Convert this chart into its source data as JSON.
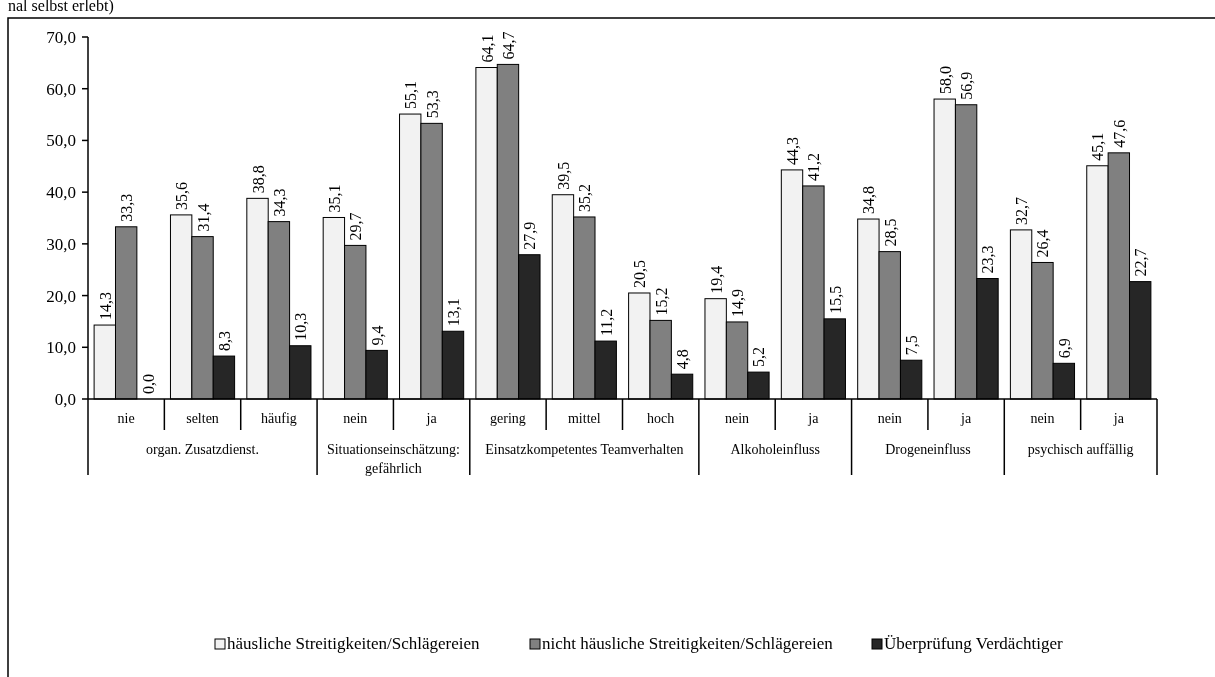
{
  "chart_data": {
    "type": "bar",
    "categories": [
      "nie",
      "selten",
      "häufig",
      "nein",
      "ja",
      "gering",
      "mittel",
      "hoch",
      "nein",
      "ja",
      "nein",
      "ja",
      "nein",
      "ja"
    ],
    "series": [
      {
        "name": "häusliche Streitigkeiten/Schlägereien",
        "color": "#f2f2f2",
        "values": [
          14.3,
          35.6,
          38.8,
          35.1,
          55.1,
          64.1,
          39.5,
          20.5,
          19.4,
          44.3,
          34.8,
          58.0,
          32.7,
          45.1
        ]
      },
      {
        "name": "nicht häusliche Streitigkeiten/Schlägereien",
        "color": "#808080",
        "values": [
          33.3,
          31.4,
          34.3,
          29.7,
          53.3,
          64.7,
          35.2,
          15.2,
          14.9,
          41.2,
          28.5,
          56.9,
          26.4,
          47.6
        ]
      },
      {
        "name": "Überprüfung Verdächtiger",
        "color": "#262626",
        "values": [
          0.0,
          8.3,
          10.3,
          9.4,
          13.1,
          27.9,
          11.2,
          4.8,
          5.2,
          15.5,
          7.5,
          23.3,
          6.9,
          22.7
        ]
      }
    ],
    "ylim": [
      0,
      70
    ],
    "yticks": [
      {
        "value": 0,
        "label": "0,0"
      },
      {
        "value": 10,
        "label": "10,0"
      },
      {
        "value": 20,
        "label": "20,0"
      },
      {
        "value": 30,
        "label": "30,0"
      },
      {
        "value": 40,
        "label": "40,0"
      },
      {
        "value": 50,
        "label": "50,0"
      },
      {
        "value": 60,
        "label": "60,0"
      },
      {
        "value": 70,
        "label": "70,0"
      }
    ],
    "value_labels": [
      [
        "14,3",
        "35,6",
        "38,8",
        "35,1",
        "55,1",
        "64,1",
        "39,5",
        "20,5",
        "19,4",
        "44,3",
        "34,8",
        "58,0",
        "32,7",
        "45,1"
      ],
      [
        "33,3",
        "31,4",
        "34,3",
        "29,7",
        "53,3",
        "64,7",
        "35,2",
        "15,2",
        "14,9",
        "41,2",
        "28,5",
        "56,9",
        "26,4",
        "47,6"
      ],
      [
        "0,0",
        "8,3",
        "10,3",
        "9,4",
        "13,1",
        "27,9",
        "11,2",
        "4,8",
        "5,2",
        "15,5",
        "7,5",
        "23,3",
        "6,9",
        "22,7"
      ]
    ],
    "grid": false,
    "legend": "bottom",
    "annotations": [
      "nal selbst erlebt)",
      "organ. Zusatzdienst.",
      "Situationseinschätzung:\ngefährlich",
      "Einsatzkompetentes Teamverhalten",
      "Alkoholeinfluss",
      "Drogeneinfluss",
      "psychisch auffällig"
    ]
  }
}
